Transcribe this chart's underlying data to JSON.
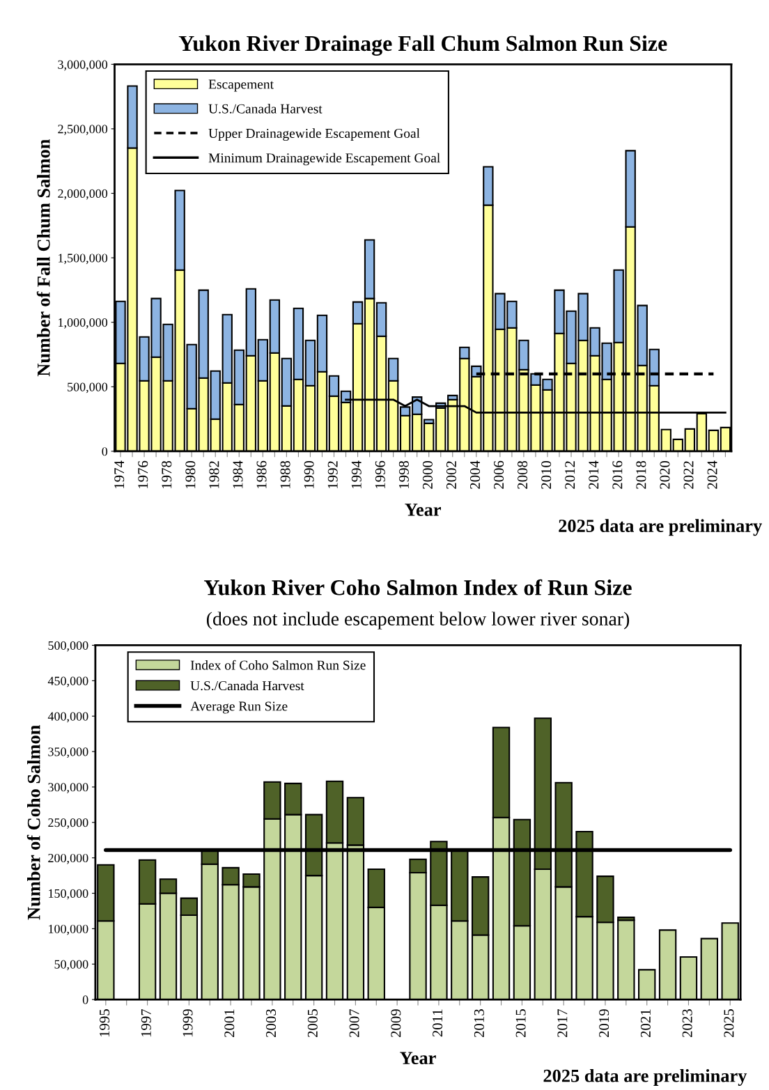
{
  "chart_data": [
    {
      "type": "bar",
      "title": "Yukon River Drainage Fall Chum Salmon Run Size",
      "xlabel": "Year",
      "ylabel": "Number of Fall Chum Salmon",
      "categories": [
        "1974",
        null,
        "1976",
        null,
        "1978",
        null,
        "1980",
        null,
        "1982",
        null,
        "1984",
        null,
        "1986",
        null,
        "1988",
        null,
        "1990",
        null,
        "1992",
        null,
        "1994",
        null,
        "1996",
        null,
        "1998",
        null,
        "2000",
        null,
        "2002",
        null,
        "2004",
        null,
        "2006",
        null,
        "2008",
        null,
        "2010",
        null,
        "2012",
        null,
        "2014",
        null,
        "2016",
        null,
        "2018",
        null,
        "2020",
        null,
        "2022",
        null,
        "2024",
        null
      ],
      "stacked": true,
      "series": [
        {
          "name": "Escapement",
          "color": "#ffff99",
          "values": [
            681000,
            2351000,
            546000,
            730000,
            546000,
            1405000,
            330000,
            568000,
            249000,
            530000,
            362000,
            741000,
            546000,
            762000,
            351000,
            557000,
            508000,
            616000,
            427000,
            378000,
            989000,
            1184000,
            892000,
            546000,
            276000,
            287000,
            216000,
            335000,
            400000,
            719000,
            578000,
            1908000,
            946000,
            957000,
            632000,
            514000,
            476000,
            913000,
            681000,
            859000,
            741000,
            557000,
            843000,
            1740000,
            665000,
            508000,
            168000,
            92000,
            173000,
            292000,
            162000,
            184000
          ]
        },
        {
          "name": "U.S./Canada Harvest",
          "color": "#8db4e2",
          "values": [
            481000,
            481000,
            340000,
            454000,
            438000,
            617000,
            497000,
            681000,
            373000,
            529000,
            422000,
            518000,
            319000,
            411000,
            368000,
            551000,
            351000,
            438000,
            157000,
            87000,
            168000,
            454000,
            259000,
            173000,
            67000,
            133000,
            29000,
            38000,
            32000,
            86000,
            81000,
            297000,
            276000,
            205000,
            227000,
            86000,
            81000,
            336000,
            405000,
            363000,
            216000,
            281000,
            562000,
            590000,
            465000,
            281000,
            null,
            null,
            null,
            null,
            null,
            null
          ]
        },
        {
          "name": "Upper Drainagewide Escapement Goal",
          "type": "line",
          "color": "#000000",
          "line_style": "dashed",
          "values": [
            null,
            null,
            null,
            null,
            null,
            null,
            null,
            null,
            null,
            null,
            null,
            null,
            null,
            null,
            null,
            null,
            null,
            null,
            null,
            null,
            null,
            null,
            null,
            null,
            null,
            null,
            null,
            null,
            null,
            null,
            600000,
            600000,
            600000,
            600000,
            600000,
            600000,
            600000,
            600000,
            600000,
            600000,
            600000,
            600000,
            600000,
            600000,
            600000,
            600000,
            600000,
            600000,
            600000,
            600000,
            600000,
            null
          ]
        },
        {
          "name": "Minimum Drainagewide Escapement Goal",
          "type": "line",
          "color": "#000000",
          "line_style": "solid",
          "values": [
            null,
            null,
            null,
            null,
            null,
            null,
            null,
            null,
            null,
            null,
            null,
            null,
            null,
            null,
            null,
            null,
            null,
            null,
            null,
            400000,
            400000,
            400000,
            400000,
            400000,
            350000,
            400000,
            350000,
            350000,
            350000,
            350000,
            300000,
            300000,
            300000,
            300000,
            300000,
            300000,
            300000,
            300000,
            300000,
            300000,
            300000,
            300000,
            300000,
            300000,
            300000,
            300000,
            300000,
            300000,
            300000,
            300000,
            300000,
            300000
          ]
        }
      ],
      "ylim": [
        0,
        3000000
      ],
      "yticks": [
        0,
        {
          "value": 500000,
          "label": "500,000"
        },
        {
          "value": 1000000,
          "label": "1,000,000"
        },
        {
          "value": 1500000,
          "label": "1,500,000"
        },
        {
          "value": 2000000,
          "label": "2,000,000"
        },
        {
          "value": 2500000,
          "label": "2,500,000"
        },
        {
          "value": 3000000,
          "label": "3,000,000"
        }
      ],
      "legend": "top left",
      "grid": false,
      "annotations": [
        "2025 data are preliminary"
      ]
    },
    {
      "type": "bar",
      "title": "Yukon River Coho Salmon Index of Run Size",
      "subtitle": "(does not include escapement below lower river sonar)",
      "xlabel": "Year",
      "ylabel": "Number of Coho Salmon",
      "categories": [
        "1995",
        null,
        "1997",
        null,
        "1999",
        null,
        "2001",
        null,
        "2003",
        null,
        "2005",
        null,
        "2007",
        null,
        "2009",
        null,
        "2011",
        null,
        "2013",
        null,
        "2015",
        null,
        "2017",
        null,
        "2019",
        null,
        "2021",
        null,
        "2023",
        null,
        "2025"
      ],
      "stacked": true,
      "series": [
        {
          "name": "Index of Coho Salmon Run Size",
          "color": "#c4d79b",
          "values": [
            111000,
            null,
            135000,
            150000,
            119000,
            191000,
            162000,
            159000,
            255000,
            261000,
            175000,
            221000,
            218000,
            130000,
            null,
            179000,
            133000,
            111000,
            91000,
            257000,
            104000,
            184000,
            159000,
            117000,
            109000,
            112000,
            42000,
            98000,
            60000,
            86000,
            108000
          ]
        },
        {
          "name": "U.S./Canada Harvest",
          "color": "#4f6228",
          "values": [
            79000,
            null,
            62000,
            20000,
            24000,
            21000,
            24000,
            18000,
            52000,
            44000,
            86000,
            87000,
            67000,
            54000,
            null,
            19000,
            90000,
            99000,
            82000,
            127000,
            150000,
            213000,
            147000,
            120000,
            65000,
            4000,
            null,
            null,
            null,
            null,
            null
          ]
        }
      ],
      "ref_lines": [
        {
          "axis": "y",
          "value": 211000,
          "label": "Average Run Size",
          "color": "#000000"
        }
      ],
      "ylim": [
        0,
        500000
      ],
      "yticks": [
        0,
        {
          "value": 50000,
          "label": "50,000"
        },
        {
          "value": 100000,
          "label": "100,000"
        },
        {
          "value": 150000,
          "label": "150,000"
        },
        {
          "value": 200000,
          "label": "200,000"
        },
        {
          "value": 250000,
          "label": "250,000"
        },
        {
          "value": 300000,
          "label": "300,000"
        },
        {
          "value": 350000,
          "label": "350,000"
        },
        {
          "value": 400000,
          "label": "400,000"
        },
        {
          "value": 450000,
          "label": "450,000"
        },
        {
          "value": 500000,
          "label": "500,000"
        }
      ],
      "legend": "top left",
      "grid": false,
      "annotations": [
        "2025 data are preliminary"
      ]
    }
  ]
}
